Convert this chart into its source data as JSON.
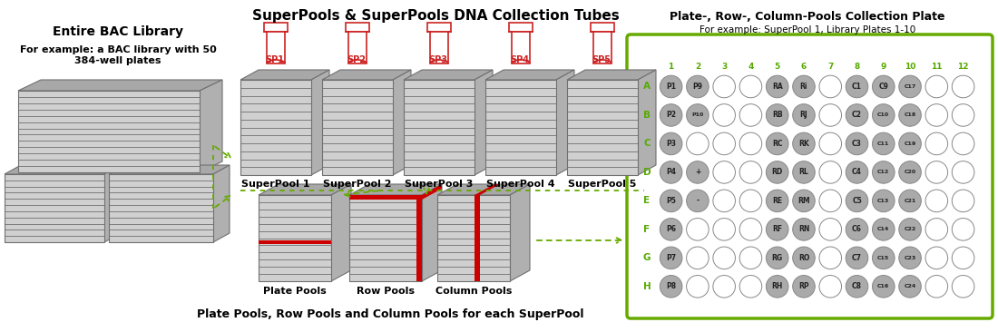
{
  "title": "SuperPools & SuperPools DNA Collection Tubes",
  "subtitle_bottom": "Plate Pools, Row Pools and Column Pools for each SuperPool",
  "left_title": "Entire BAC Library",
  "left_subtitle": "For example: a BAC library with 50\n384-well plates",
  "right_title": "Plate-, Row-, Column-Pools Collection Plate",
  "right_subtitle": "For example: SuperPool 1, Library Plates 1-10",
  "superpool_labels": [
    "SuperPool 1",
    "SuperPool 2",
    "SuperPool 3",
    "SuperPool 4",
    "SuperPool 5"
  ],
  "superpool_tube_labels": [
    "SP1",
    "SP2",
    "SP3",
    "SP4",
    "SP5"
  ],
  "bottom_labels": [
    "Plate Pools",
    "Row Pools",
    "Column Pools"
  ],
  "plate_rows": [
    "A",
    "B",
    "C",
    "D",
    "E",
    "F",
    "G",
    "H"
  ],
  "plate_cols": [
    "1",
    "2",
    "3",
    "4",
    "5",
    "6",
    "7",
    "8",
    "9",
    "10",
    "11",
    "12"
  ],
  "plate_filled": {
    "A": [
      0,
      1,
      4,
      5,
      7,
      8,
      9
    ],
    "B": [
      0,
      1,
      4,
      5,
      7,
      8,
      9
    ],
    "C": [
      0,
      4,
      5,
      7,
      8,
      9
    ],
    "D": [
      0,
      1,
      4,
      5,
      7,
      8,
      9
    ],
    "E": [
      0,
      1,
      4,
      5,
      7,
      8,
      9
    ],
    "F": [
      0,
      4,
      5,
      7,
      8,
      9
    ],
    "G": [
      0,
      4,
      5,
      7,
      8,
      9
    ],
    "H": [
      0,
      4,
      5,
      7,
      8,
      9
    ]
  },
  "plate_labels": {
    "A": {
      "0": "P1",
      "1": "P9",
      "4": "RA",
      "5": "Ri",
      "7": "C1",
      "8": "C9",
      "9": "C17"
    },
    "B": {
      "0": "P2",
      "1": "P10",
      "4": "RB",
      "5": "RJ",
      "7": "C2",
      "8": "C10",
      "9": "C18"
    },
    "C": {
      "0": "P3",
      "4": "RC",
      "5": "RK",
      "7": "C3",
      "8": "C11",
      "9": "C19"
    },
    "D": {
      "0": "P4",
      "1": "+",
      "4": "RD",
      "5": "RL",
      "7": "C4",
      "8": "C12",
      "9": "C20"
    },
    "E": {
      "0": "P5",
      "1": "-",
      "4": "RE",
      "5": "RM",
      "7": "C5",
      "8": "C13",
      "9": "C21"
    },
    "F": {
      "0": "P6",
      "4": "RF",
      "5": "RN",
      "7": "C6",
      "8": "C14",
      "9": "C22"
    },
    "G": {
      "0": "P7",
      "4": "RG",
      "5": "RO",
      "7": "C7",
      "8": "C15",
      "9": "C23"
    },
    "H": {
      "0": "P8",
      "4": "RH",
      "5": "RP",
      "7": "C8",
      "8": "C16",
      "9": "C24"
    }
  },
  "colors": {
    "background": "#ffffff",
    "gray_face": "#d0d0d0",
    "gray_top": "#a8a8a8",
    "gray_side": "#b0b0b0",
    "gray_edge": "#707070",
    "red": "#cc0000",
    "green_border": "#66aa00",
    "green_arrow": "#66aa00",
    "tube_red": "#cc2222",
    "plate_filled_color": "#aaaaaa",
    "plate_empty_color": "#ffffff",
    "plate_border": "#888888",
    "row_label_color": "#55aa00",
    "col_label_color": "#55aa00"
  },
  "fig_w": 11.0,
  "fig_h": 3.66,
  "dpi": 100
}
